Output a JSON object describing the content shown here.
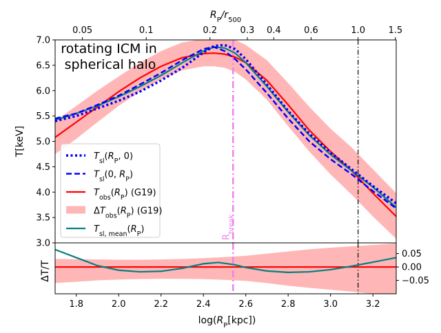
{
  "chart_data": {
    "type": "line",
    "annotation": "rotating ICM in\nspherical halo",
    "top_axis": {
      "label": "R_P/r_500",
      "ticks": [
        "0.05",
        "0.1",
        "0.2",
        "0.3",
        "0.4",
        "0.6",
        "1.0",
        "1.5"
      ],
      "tick_values": [
        0.05,
        0.1,
        0.2,
        0.3,
        0.4,
        0.6,
        1.0,
        1.5
      ],
      "r500_log_kpc": 3.13
    },
    "main_panel": {
      "ylabel": "T[keV]",
      "ylim": [
        3.0,
        7.0
      ],
      "yticks": [
        "3.0",
        "3.5",
        "4.0",
        "4.5",
        "5.0",
        "5.5",
        "6.0",
        "6.5",
        "7.0"
      ],
      "ytick_values": [
        3.0,
        3.5,
        4.0,
        4.5,
        5.0,
        5.5,
        6.0,
        6.5,
        7.0
      ]
    },
    "residual_panel": {
      "ylabel": "ΔT/T",
      "ylim": [
        -0.1,
        0.09
      ],
      "yticks": [
        "0.05",
        "0.00",
        "−0.05"
      ],
      "ytick_values": [
        0.05,
        0.0,
        -0.05
      ]
    },
    "x_axis": {
      "label": "log(R_P[kpc])",
      "xlim": [
        1.7,
        3.31
      ],
      "ticks": [
        "1.8",
        "2.0",
        "2.2",
        "2.4",
        "2.6",
        "2.8",
        "3.0",
        "3.2"
      ],
      "tick_values": [
        1.8,
        2.0,
        2.2,
        2.4,
        2.6,
        2.8,
        3.0,
        3.2
      ]
    },
    "vlines": [
      {
        "name": "R_break",
        "label": "Rbreak",
        "x": 2.54,
        "color": "#ee82ee"
      },
      {
        "name": "r500",
        "x": 3.13,
        "color": "#000000"
      }
    ],
    "legend": {
      "position": "lower-left",
      "entries": [
        "T_sl(R_P, 0)",
        "T_sl(0, R_P)",
        "T_obs(R_P) (G19)",
        "ΔT_obs(R_P) (G19)",
        "T_sl,mean(R_P)"
      ]
    },
    "series": [
      {
        "name": "T_sl(R_P, 0)",
        "color": "#0000ff",
        "style": "dotted",
        "x": [
          1.7,
          1.8,
          1.9,
          2.0,
          2.1,
          2.2,
          2.3,
          2.4,
          2.45,
          2.5,
          2.55,
          2.6,
          2.7,
          2.8,
          2.9,
          3.0,
          3.1,
          3.2,
          3.31
        ],
        "y": [
          5.4,
          5.5,
          5.65,
          5.8,
          5.98,
          6.2,
          6.45,
          6.75,
          6.88,
          6.9,
          6.82,
          6.62,
          6.12,
          5.6,
          5.15,
          4.78,
          4.45,
          4.12,
          3.78
        ]
      },
      {
        "name": "T_sl(0, R_P)",
        "color": "#0000ff",
        "style": "dashed",
        "x": [
          1.7,
          1.8,
          1.9,
          2.0,
          2.1,
          2.2,
          2.3,
          2.4,
          2.45,
          2.5,
          2.55,
          2.6,
          2.7,
          2.8,
          2.9,
          3.0,
          3.1,
          3.2,
          3.31
        ],
        "y": [
          5.45,
          5.55,
          5.72,
          5.9,
          6.12,
          6.35,
          6.6,
          6.82,
          6.86,
          6.78,
          6.62,
          6.42,
          5.95,
          5.45,
          5.0,
          4.65,
          4.35,
          4.02,
          3.68
        ]
      },
      {
        "name": "T_obs(R_P) (G19)",
        "color": "#ff0000",
        "style": "solid",
        "x": [
          1.7,
          1.8,
          1.9,
          2.0,
          2.1,
          2.2,
          2.3,
          2.4,
          2.45,
          2.5,
          2.55,
          2.6,
          2.7,
          2.8,
          2.9,
          3.0,
          3.1,
          3.2,
          3.31
        ],
        "y": [
          5.08,
          5.38,
          5.68,
          5.98,
          6.25,
          6.48,
          6.65,
          6.73,
          6.74,
          6.72,
          6.66,
          6.55,
          6.2,
          5.72,
          5.22,
          4.8,
          4.42,
          3.98,
          3.52
        ]
      },
      {
        "name": "T_sl,mean(R_P)",
        "color": "#008080",
        "style": "solid",
        "x": [
          1.7,
          1.8,
          1.9,
          2.0,
          2.1,
          2.2,
          2.3,
          2.4,
          2.45,
          2.5,
          2.55,
          2.6,
          2.7,
          2.8,
          2.9,
          3.0,
          3.1,
          3.2,
          3.31
        ],
        "y": [
          5.42,
          5.55,
          5.7,
          5.88,
          6.08,
          6.3,
          6.55,
          6.78,
          6.86,
          6.84,
          6.74,
          6.55,
          6.08,
          5.58,
          5.12,
          4.74,
          4.42,
          4.1,
          3.7
        ]
      }
    ],
    "band": {
      "name": "ΔT_obs(R_P) (G19)",
      "color": "#ffb6b6",
      "x": [
        1.7,
        1.8,
        1.9,
        2.0,
        2.1,
        2.2,
        2.3,
        2.4,
        2.45,
        2.5,
        2.55,
        2.6,
        2.7,
        2.8,
        2.9,
        3.0,
        3.1,
        3.2,
        3.31
      ],
      "lower": [
        4.75,
        5.05,
        5.38,
        5.7,
        5.98,
        6.22,
        6.4,
        6.48,
        6.48,
        6.45,
        6.37,
        6.22,
        5.82,
        5.3,
        4.8,
        4.35,
        3.95,
        3.52,
        3.08
      ],
      "upper": [
        5.4,
        5.7,
        6.0,
        6.28,
        6.55,
        6.78,
        6.95,
        7.02,
        7.05,
        7.05,
        7.0,
        6.9,
        6.6,
        6.15,
        5.68,
        5.25,
        4.88,
        4.45,
        3.98
      ]
    },
    "residual_series": [
      {
        "name": "T_obs residual",
        "color": "#ff0000",
        "x": [
          1.7,
          3.31
        ],
        "y": [
          0.0,
          0.0
        ]
      },
      {
        "name": "T_sl,mean residual",
        "color": "#008080",
        "x": [
          1.7,
          1.8,
          1.9,
          2.0,
          2.1,
          2.2,
          2.3,
          2.4,
          2.47,
          2.55,
          2.6,
          2.7,
          2.8,
          2.9,
          3.0,
          3.1,
          3.2,
          3.31
        ],
        "y": [
          0.065,
          0.035,
          0.005,
          -0.012,
          -0.018,
          -0.016,
          -0.005,
          0.012,
          0.017,
          0.008,
          -0.002,
          -0.015,
          -0.02,
          -0.018,
          -0.01,
          0.003,
          0.018,
          0.035
        ]
      }
    ],
    "residual_band": {
      "name": "ΔT residual",
      "color": "#ffb6b6",
      "x": [
        1.7,
        1.8,
        1.9,
        2.0,
        2.1,
        2.2,
        2.3,
        2.4,
        2.5,
        2.6,
        2.7,
        2.8,
        2.9,
        3.0,
        3.1,
        3.2,
        3.31
      ],
      "lower": [
        -0.06,
        -0.055,
        -0.05,
        -0.047,
        -0.045,
        -0.044,
        -0.044,
        -0.045,
        -0.048,
        -0.052,
        -0.06,
        -0.07,
        -0.078,
        -0.085,
        -0.092,
        -0.1,
        -0.1
      ],
      "upper": [
        0.03,
        0.029,
        0.028,
        0.027,
        0.027,
        0.028,
        0.03,
        0.033,
        0.037,
        0.042,
        0.05,
        0.058,
        0.066,
        0.072,
        0.077,
        0.082,
        0.088
      ]
    }
  }
}
